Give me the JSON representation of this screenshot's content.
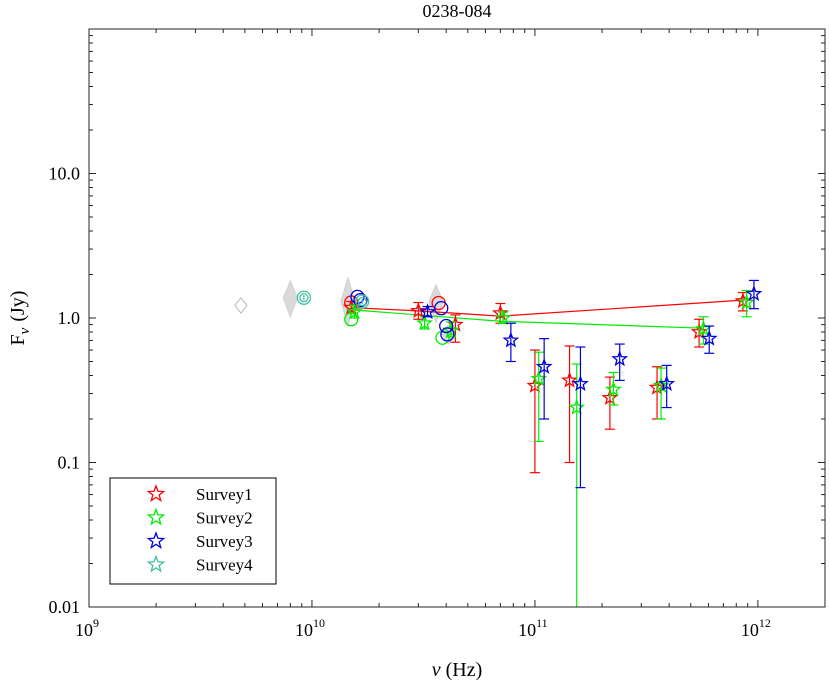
{
  "chart_data": {
    "type": "scatter",
    "title": "0238-084",
    "xlabel_symbol": "ν",
    "xlabel_unit": "(Hz)",
    "ylabel_main": "F",
    "ylabel_sub": "ν",
    "ylabel_unit": "(Jy)",
    "xscale": "log",
    "yscale": "log",
    "xlim": [
      1000000000.0,
      2000000000000.0
    ],
    "ylim": [
      0.01,
      100
    ],
    "x_ticks": [
      {
        "value": 1000000000.0,
        "base": "10",
        "exp": "9"
      },
      {
        "value": 10000000000.0,
        "base": "10",
        "exp": "10"
      },
      {
        "value": 100000000000.0,
        "base": "10",
        "exp": "11"
      },
      {
        "value": 1000000000000.0,
        "base": "10",
        "exp": "12"
      }
    ],
    "y_ticks": [
      {
        "value": 0.01,
        "label": "0.01"
      },
      {
        "value": 0.1,
        "label": "0.1"
      },
      {
        "value": 1,
        "label": "1.0"
      },
      {
        "value": 10,
        "label": "10.0"
      }
    ],
    "legend_position": "bottom-left",
    "series": [
      {
        "name": "Survey1",
        "color": "#ff0000",
        "stars": [
          {
            "x": 15000000000.0,
            "y": 1.18,
            "lo": 1.08,
            "hi": 1.3
          },
          {
            "x": 30000000000.0,
            "y": 1.12,
            "lo": 0.98,
            "hi": 1.28
          },
          {
            "x": 44000000000.0,
            "y": 0.9,
            "lo": 0.68,
            "hi": 1.05
          },
          {
            "x": 70000000000.0,
            "y": 1.08,
            "lo": 0.92,
            "hi": 1.26
          },
          {
            "x": 100000000000.0,
            "y": 0.34,
            "lo": 0.085,
            "hi": 0.6
          },
          {
            "x": 143000000000.0,
            "y": 0.37,
            "lo": 0.1,
            "hi": 0.64
          },
          {
            "x": 217000000000.0,
            "y": 0.28,
            "lo": 0.17,
            "hi": 0.39
          },
          {
            "x": 353000000000.0,
            "y": 0.33,
            "lo": 0.2,
            "hi": 0.46
          },
          {
            "x": 545000000000.0,
            "y": 0.8,
            "lo": 0.63,
            "hi": 0.98
          },
          {
            "x": 857000000000.0,
            "y": 1.31,
            "lo": 1.12,
            "hi": 1.5
          }
        ],
        "circles": [
          {
            "x": 15000000000.0,
            "y": 1.28
          },
          {
            "x": 37000000000.0,
            "y": 1.27
          }
        ],
        "line": [
          {
            "x": 15000000000.0,
            "y": 1.18
          },
          {
            "x": 30000000000.0,
            "y": 1.12
          },
          {
            "x": 70000000000.0,
            "y": 1.03
          },
          {
            "x": 857000000000.0,
            "y": 1.33
          }
        ]
      },
      {
        "name": "Survey2",
        "color": "#00ee00",
        "stars": [
          {
            "x": 15500000000.0,
            "y": 1.1,
            "lo": 1.0,
            "hi": 1.22
          },
          {
            "x": 32000000000.0,
            "y": 0.92,
            "lo": 0.84,
            "hi": 1.02
          },
          {
            "x": 42000000000.0,
            "y": 0.82,
            "lo": 0.74,
            "hi": 0.94
          },
          {
            "x": 72000000000.0,
            "y": 1.0,
            "lo": 0.92,
            "hi": 1.1
          },
          {
            "x": 104000000000.0,
            "y": 0.38,
            "lo": 0.14,
            "hi": 0.58
          },
          {
            "x": 154000000000.0,
            "y": 0.24,
            "lo": 0.005,
            "hi": 0.48
          },
          {
            "x": 225000000000.0,
            "y": 0.32,
            "lo": 0.25,
            "hi": 0.42
          },
          {
            "x": 368000000000.0,
            "y": 0.34,
            "lo": 0.2,
            "hi": 0.45
          },
          {
            "x": 570000000000.0,
            "y": 0.84,
            "lo": 0.66,
            "hi": 1.02
          },
          {
            "x": 890000000000.0,
            "y": 1.28,
            "lo": 1.02,
            "hi": 1.55
          }
        ],
        "circles": [
          {
            "x": 15000000000.0,
            "y": 0.98
          },
          {
            "x": 38500000000.0,
            "y": 0.73
          }
        ],
        "line": [
          {
            "x": 15000000000.0,
            "y": 1.14
          },
          {
            "x": 30000000000.0,
            "y": 1.05
          },
          {
            "x": 70000000000.0,
            "y": 0.95
          },
          {
            "x": 570000000000.0,
            "y": 0.85
          }
        ]
      },
      {
        "name": "Survey3",
        "color": "#0000dd",
        "stars": [
          {
            "x": 33000000000.0,
            "y": 1.1,
            "lo": 1.02,
            "hi": 1.2
          },
          {
            "x": 78000000000.0,
            "y": 0.7,
            "lo": 0.5,
            "hi": 0.92
          },
          {
            "x": 110000000000.0,
            "y": 0.46,
            "lo": 0.2,
            "hi": 0.72
          },
          {
            "x": 160000000000.0,
            "y": 0.35,
            "lo": 0.067,
            "hi": 0.63
          },
          {
            "x": 240000000000.0,
            "y": 0.52,
            "lo": 0.37,
            "hi": 0.66
          },
          {
            "x": 390000000000.0,
            "y": 0.35,
            "lo": 0.24,
            "hi": 0.47
          },
          {
            "x": 605000000000.0,
            "y": 0.72,
            "lo": 0.57,
            "hi": 0.88
          },
          {
            "x": 960000000000.0,
            "y": 1.47,
            "lo": 1.16,
            "hi": 1.82
          }
        ],
        "circles": [
          {
            "x": 16000000000.0,
            "y": 1.4
          },
          {
            "x": 16500000000.0,
            "y": 1.33
          },
          {
            "x": 38000000000.0,
            "y": 1.17
          },
          {
            "x": 40000000000.0,
            "y": 0.88
          },
          {
            "x": 40500000000.0,
            "y": 0.77
          }
        ],
        "line": []
      },
      {
        "name": "Survey4",
        "color": "#3fbf9f",
        "stars": [],
        "circles": [
          {
            "x": 9200000000.0,
            "y": 1.38
          },
          {
            "x": 16800000000.0,
            "y": 1.3
          }
        ],
        "line": []
      }
    ],
    "grey_markers": [
      {
        "x": 4800000000.0,
        "y": 1.22,
        "hi": 1.38,
        "lo": 1.08,
        "filled": false
      },
      {
        "x": 8000000000.0,
        "y": 1.38,
        "hi": 1.8,
        "lo": 1.02,
        "filled": true
      },
      {
        "x": 14500000000.0,
        "y": 1.3,
        "hi": 1.9,
        "lo": 0.88,
        "filled": true
      },
      {
        "x": 36000000000.0,
        "y": 1.3,
        "hi": 1.7,
        "lo": 0.93,
        "filled": true
      },
      {
        "x": 41000000000.0,
        "y": 0.78,
        "hi": 0.9,
        "lo": 0.66,
        "filled": true
      }
    ]
  }
}
